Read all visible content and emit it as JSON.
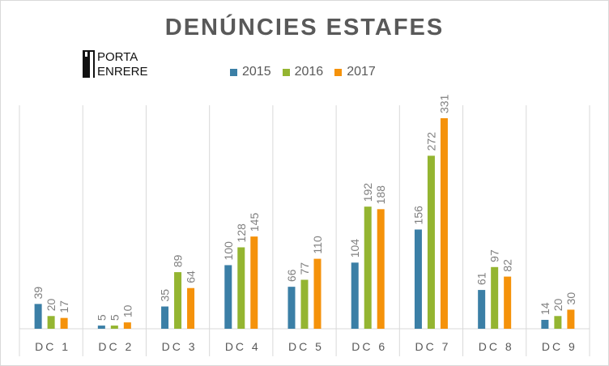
{
  "chart_data": {
    "type": "bar",
    "title": "DENÚNCIES ESTAFES",
    "categories": [
      "DC 1",
      "DC 2",
      "DC 3",
      "DC 4",
      "DC 5",
      "DC 6",
      "DC 7",
      "DC 8",
      "DC 9"
    ],
    "series": [
      {
        "name": "2015",
        "color": "#3b7fa6",
        "values": [
          39,
          5,
          35,
          100,
          66,
          104,
          156,
          61,
          14
        ]
      },
      {
        "name": "2016",
        "color": "#94b531",
        "values": [
          20,
          5,
          89,
          128,
          77,
          192,
          272,
          97,
          20
        ]
      },
      {
        "name": "2017",
        "color": "#f5920a",
        "values": [
          17,
          10,
          64,
          145,
          110,
          188,
          331,
          82,
          30
        ]
      }
    ],
    "ylim": [
      0,
      331
    ],
    "grid": "vertical separators",
    "legend_position": "top-center",
    "data_labels": true
  },
  "logo": {
    "line1": "PORTA",
    "line2": "ENRERE"
  }
}
